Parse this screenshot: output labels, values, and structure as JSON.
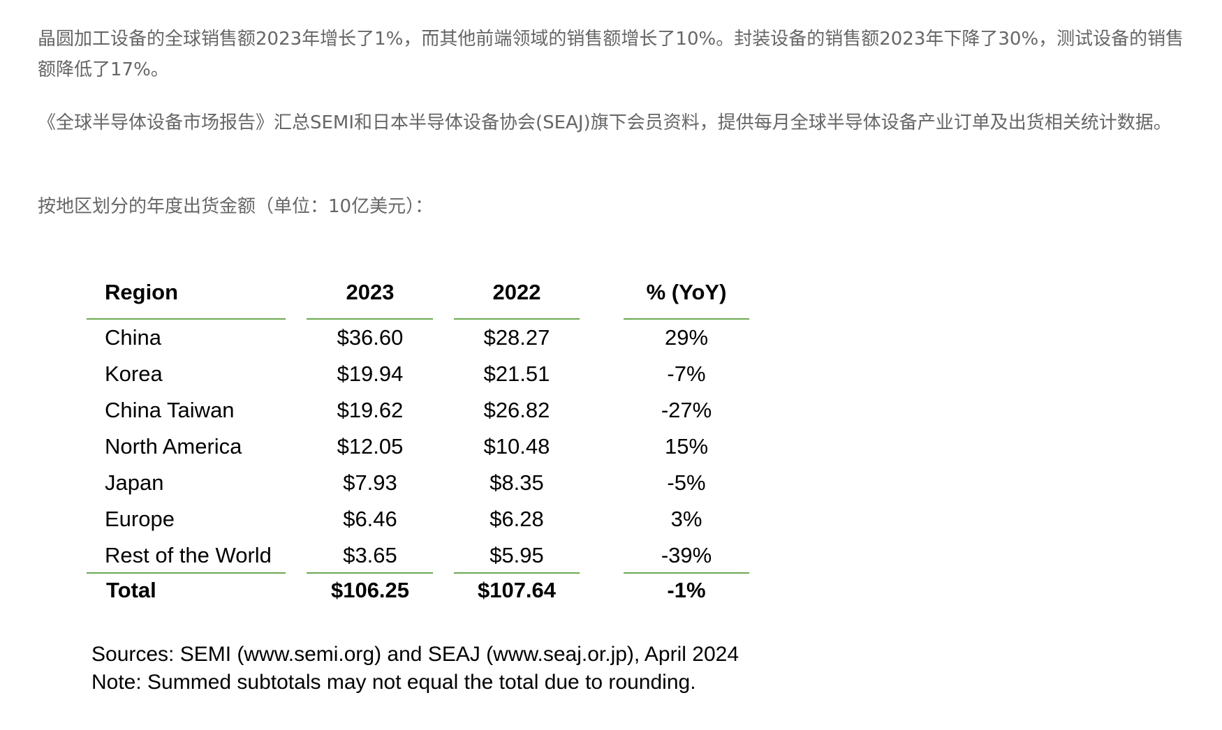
{
  "intro": {
    "paragraph_1": "晶圆加工设备的全球销售额2023年增长了1%，而其他前端领域的销售额增长了10%。封装设备的销售额2023年下降了30%，测试设备的销售额降低了17%。",
    "paragraph_2": "《全球半导体设备市场报告》汇总SEMI和日本半导体设备协会(SEAJ)旗下会员资料，提供每月全球半导体设备产业订单及出货相关统计数据。",
    "paragraph_3": "按地区划分的年度出货金额（单位：10亿美元）："
  },
  "table": {
    "headers": {
      "region": "Region",
      "y2023": "2023",
      "y2022": "2022",
      "yoy": "% (YoY)"
    },
    "rows": [
      {
        "region": "China",
        "y2023": "$36.60",
        "y2022": "$28.27",
        "yoy": "29%"
      },
      {
        "region": "Korea",
        "y2023": "$19.94",
        "y2022": "$21.51",
        "yoy": "-7%"
      },
      {
        "region": "China Taiwan",
        "y2023": "$19.62",
        "y2022": "$26.82",
        "yoy": "-27%"
      },
      {
        "region": "North America",
        "y2023": "$12.05",
        "y2022": "$10.48",
        "yoy": "15%"
      },
      {
        "region": "Japan",
        "y2023": "$7.93",
        "y2022": "$8.35",
        "yoy": "-5%"
      },
      {
        "region": "Europe",
        "y2023": "$6.46",
        "y2022": "$6.28",
        "yoy": "3%"
      },
      {
        "region": "Rest of the World",
        "y2023": "$3.65",
        "y2022": "$5.95",
        "yoy": "-39%"
      }
    ],
    "total": {
      "region": "Total",
      "y2023": "$106.25",
      "y2022": "$107.64",
      "yoy": "-1%"
    },
    "rule_color": "#6aa84f"
  },
  "footnotes": {
    "sources": "Sources: SEMI (www.semi.org) and SEAJ (www.seaj.or.jp), April 2024",
    "note": "Note: Summed subtotals may not equal the total due to rounding."
  }
}
